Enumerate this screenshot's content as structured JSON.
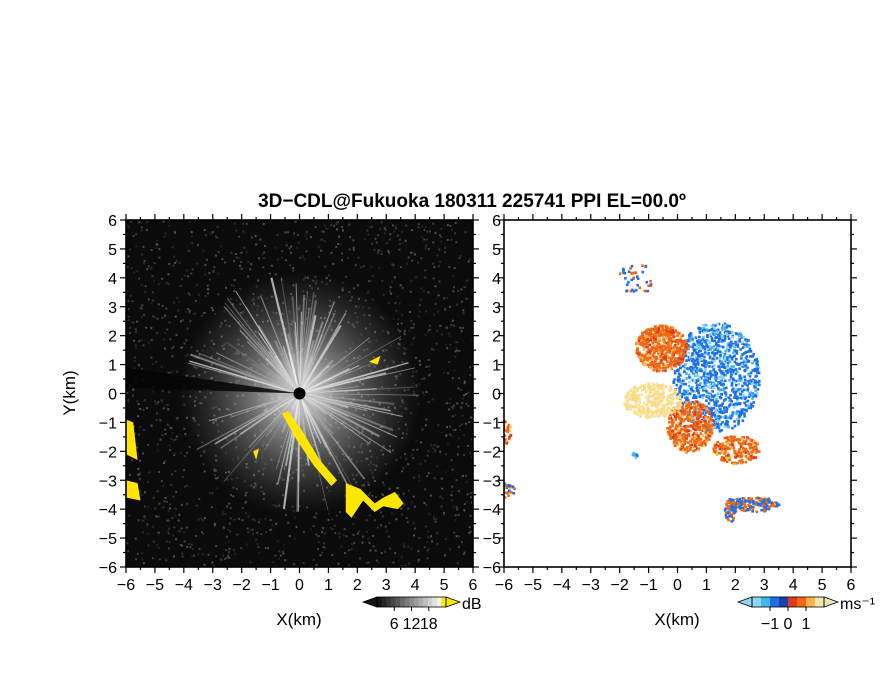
{
  "title": "3D−CDL@Fukuoka 180311 225741 PPI EL=00.0º",
  "colors": {
    "background": "#ffffff",
    "echo_panel_bg": "#0b0b0b",
    "highlight": "#ffe600",
    "velocity_negative": "#1f6fe8",
    "velocity_zero": "#f0e6b0",
    "velocity_positive": "#f06a14"
  },
  "chart_data": [
    {
      "type": "heatmap",
      "panel": "left",
      "quantity": "echo intensity",
      "xlabel": "X(km)",
      "ylabel": "Y(km)",
      "xlim": [
        -6,
        6
      ],
      "ylim": [
        -6,
        6
      ],
      "xticks": [
        -6,
        -5,
        -4,
        -3,
        -2,
        -1,
        0,
        1,
        2,
        3,
        4,
        5,
        6
      ],
      "yticks": [
        -6,
        -5,
        -4,
        -3,
        -2,
        -1,
        0,
        1,
        2,
        3,
        4,
        5,
        6
      ],
      "colorbar": {
        "unit": "dB",
        "ticks": [
          "6",
          "12",
          "18"
        ]
      }
    },
    {
      "type": "heatmap",
      "panel": "right",
      "quantity": "Doppler velocity",
      "xlabel": "X(km)",
      "ylabel": "",
      "xlim": [
        -6,
        6
      ],
      "ylim": [
        -6,
        6
      ],
      "xticks": [
        -6,
        -5,
        -4,
        -3,
        -2,
        -1,
        0,
        1,
        2,
        3,
        4,
        5,
        6
      ],
      "yticks": [
        -6,
        -5,
        -4,
        -3,
        -2,
        -1,
        0,
        1,
        2,
        3,
        4,
        5,
        6
      ],
      "colorbar": {
        "unit": "ms⁻¹",
        "ticks": [
          "−1",
          "0",
          "1"
        ]
      }
    }
  ]
}
